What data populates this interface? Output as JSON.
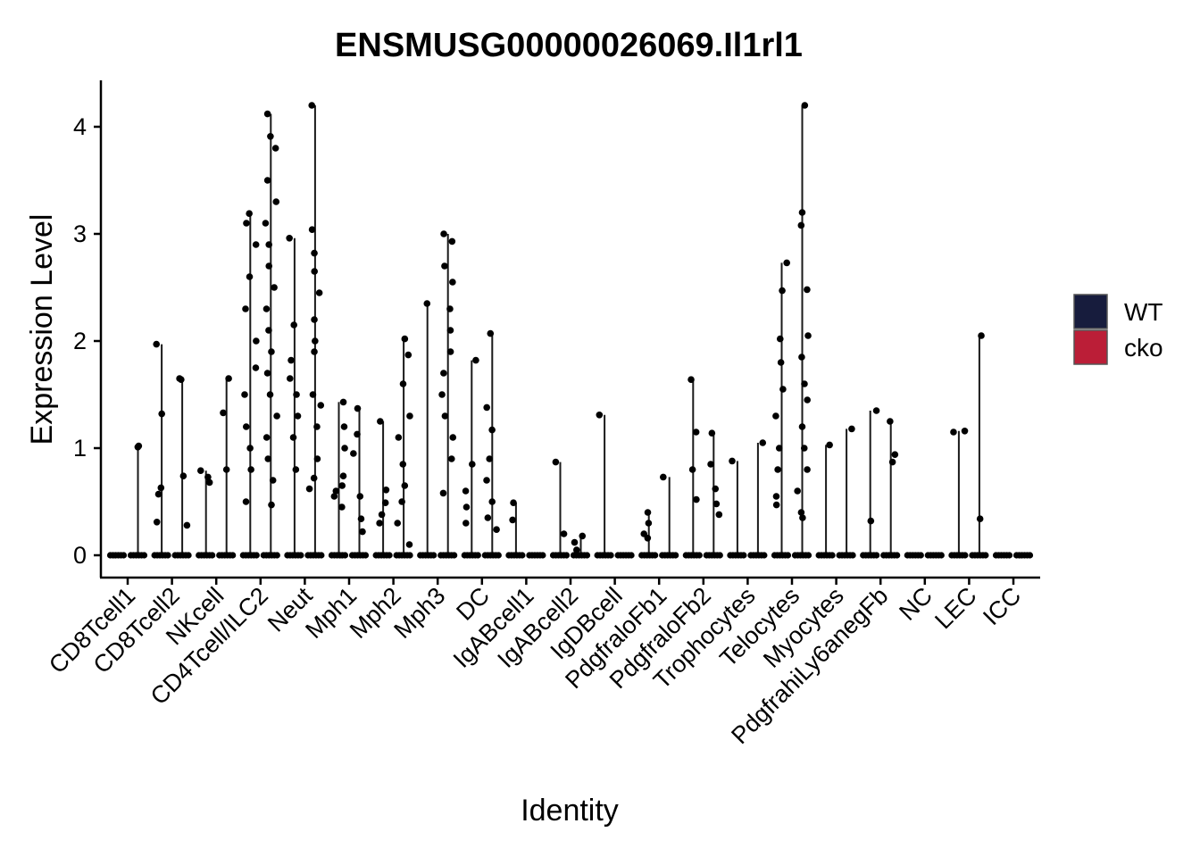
{
  "chart_data": {
    "type": "violin",
    "title": "ENSMUSG00000026069.Il1rl1",
    "xlabel": "Identity",
    "ylabel": "Expression Level",
    "ylim": [
      -0.2,
      4.4
    ],
    "yticks": [
      0,
      1,
      2,
      3,
      4
    ],
    "legend": {
      "position": "right",
      "title": ""
    },
    "series": [
      {
        "name": "WT",
        "color": "#171c3d"
      },
      {
        "name": "cko",
        "color": "#bb1e37"
      }
    ],
    "categories": [
      "CD8Tcell1",
      "CD8Tcell2",
      "NKcell",
      "CD4Tcell/ILC2",
      "Neut",
      "Mph1",
      "Mph2",
      "Mph3",
      "DC",
      "IgABcell1",
      "IgABcell2",
      "IgDBcell",
      "PdgfraloFb1",
      "PdgfraloFb2",
      "Trophocytes",
      "Telocytes",
      "Myocytes",
      "PdgfrahiLy6anegFb",
      "NC",
      "LEC",
      "ICC"
    ],
    "groups": [
      {
        "category": "CD8Tcell1",
        "WT": [
          0
        ],
        "cko": [
          0,
          1.01,
          1.02
        ]
      },
      {
        "category": "CD8Tcell2",
        "WT": [
          0,
          0.31,
          0.57,
          0.63,
          1.32,
          1.97
        ],
        "cko": [
          0,
          0.28,
          0.74,
          1.64,
          1.65
        ]
      },
      {
        "category": "NKcell",
        "WT": [
          0,
          0.68,
          0.73,
          0.79
        ],
        "cko": [
          0,
          0.8,
          1.33,
          1.65
        ]
      },
      {
        "category": "CD4Tcell/ILC2",
        "WT": [
          0,
          0.5,
          0.8,
          1.0,
          1.2,
          1.5,
          1.75,
          2.0,
          2.3,
          2.6,
          2.9,
          3.1,
          3.19
        ],
        "cko": [
          0,
          0.47,
          0.7,
          0.9,
          1.1,
          1.3,
          1.5,
          1.7,
          1.9,
          2.1,
          2.3,
          2.5,
          2.7,
          2.9,
          3.1,
          3.3,
          3.5,
          3.8,
          3.91,
          4.12
        ]
      },
      {
        "category": "Neut",
        "WT": [
          0,
          0.8,
          1.1,
          1.3,
          1.5,
          1.65,
          1.82,
          2.15,
          2.96
        ],
        "cko": [
          0,
          0.62,
          0.72,
          0.9,
          1.2,
          1.4,
          1.5,
          1.9,
          2.0,
          2.2,
          2.45,
          2.65,
          2.82,
          3.04,
          4.2
        ]
      },
      {
        "category": "Mph1",
        "WT": [
          0,
          0.45,
          0.55,
          0.6,
          0.65,
          0.74,
          1.0,
          1.2,
          1.43
        ],
        "cko": [
          0,
          0.22,
          0.34,
          0.55,
          0.95,
          1.13,
          1.37
        ]
      },
      {
        "category": "Mph2",
        "WT": [
          0,
          0.3,
          0.38,
          0.49,
          0.61,
          1.25
        ],
        "cko": [
          0,
          0.1,
          0.3,
          0.5,
          0.65,
          0.85,
          1.1,
          1.3,
          1.6,
          1.87,
          2.02
        ]
      },
      {
        "category": "Mph3",
        "WT": [
          0,
          2.35
        ],
        "cko": [
          0,
          0.58,
          0.9,
          1.1,
          1.3,
          1.5,
          1.7,
          1.9,
          2.1,
          2.3,
          2.55,
          2.7,
          2.93,
          3.0
        ]
      },
      {
        "category": "DC",
        "WT": [
          0,
          0.3,
          0.45,
          0.6,
          0.85,
          1.82
        ],
        "cko": [
          0,
          0.24,
          0.35,
          0.5,
          0.7,
          0.9,
          1.17,
          1.38,
          2.07
        ]
      },
      {
        "category": "IgABcell1",
        "WT": [
          0,
          0.33,
          0.49
        ],
        "cko": [
          0
        ]
      },
      {
        "category": "IgABcell2",
        "WT": [
          0,
          0.2,
          0.87
        ],
        "cko": [
          0,
          0.05,
          0.12,
          0.18
        ]
      },
      {
        "category": "IgDBcell",
        "WT": [
          0,
          1.31
        ],
        "cko": [
          0
        ]
      },
      {
        "category": "PdgfraloFb1",
        "WT": [
          0,
          0.16,
          0.2,
          0.3,
          0.4
        ],
        "cko": [
          0,
          0.73
        ]
      },
      {
        "category": "PdgfraloFb2",
        "WT": [
          0,
          0.52,
          0.8,
          1.15,
          1.64
        ],
        "cko": [
          0,
          0.38,
          0.48,
          0.62,
          0.85,
          1.14
        ]
      },
      {
        "category": "Trophocytes",
        "WT": [
          0,
          0.88
        ],
        "cko": [
          0,
          1.05
        ]
      },
      {
        "category": "Telocytes",
        "WT": [
          0,
          0.47,
          0.55,
          0.8,
          1.0,
          1.3,
          1.55,
          1.8,
          2.02,
          2.47,
          2.73
        ],
        "cko": [
          0,
          0.35,
          0.4,
          0.6,
          0.8,
          1.0,
          1.2,
          1.45,
          1.6,
          1.85,
          2.05,
          2.48,
          3.08,
          3.2,
          4.2
        ]
      },
      {
        "category": "Myocytes",
        "WT": [
          0,
          1.03
        ],
        "cko": [
          0,
          1.18
        ]
      },
      {
        "category": "PdgfrahiLy6anegFb",
        "WT": [
          0,
          0.32,
          1.35
        ],
        "cko": [
          0,
          0.87,
          0.94,
          1.25
        ]
      },
      {
        "category": "NC",
        "WT": [
          0
        ],
        "cko": [
          0
        ]
      },
      {
        "category": "LEC",
        "WT": [
          0,
          1.15,
          1.16
        ],
        "cko": [
          0,
          0.34,
          2.05
        ]
      },
      {
        "category": "ICC",
        "WT": [
          0
        ],
        "cko": [
          0
        ]
      }
    ]
  }
}
